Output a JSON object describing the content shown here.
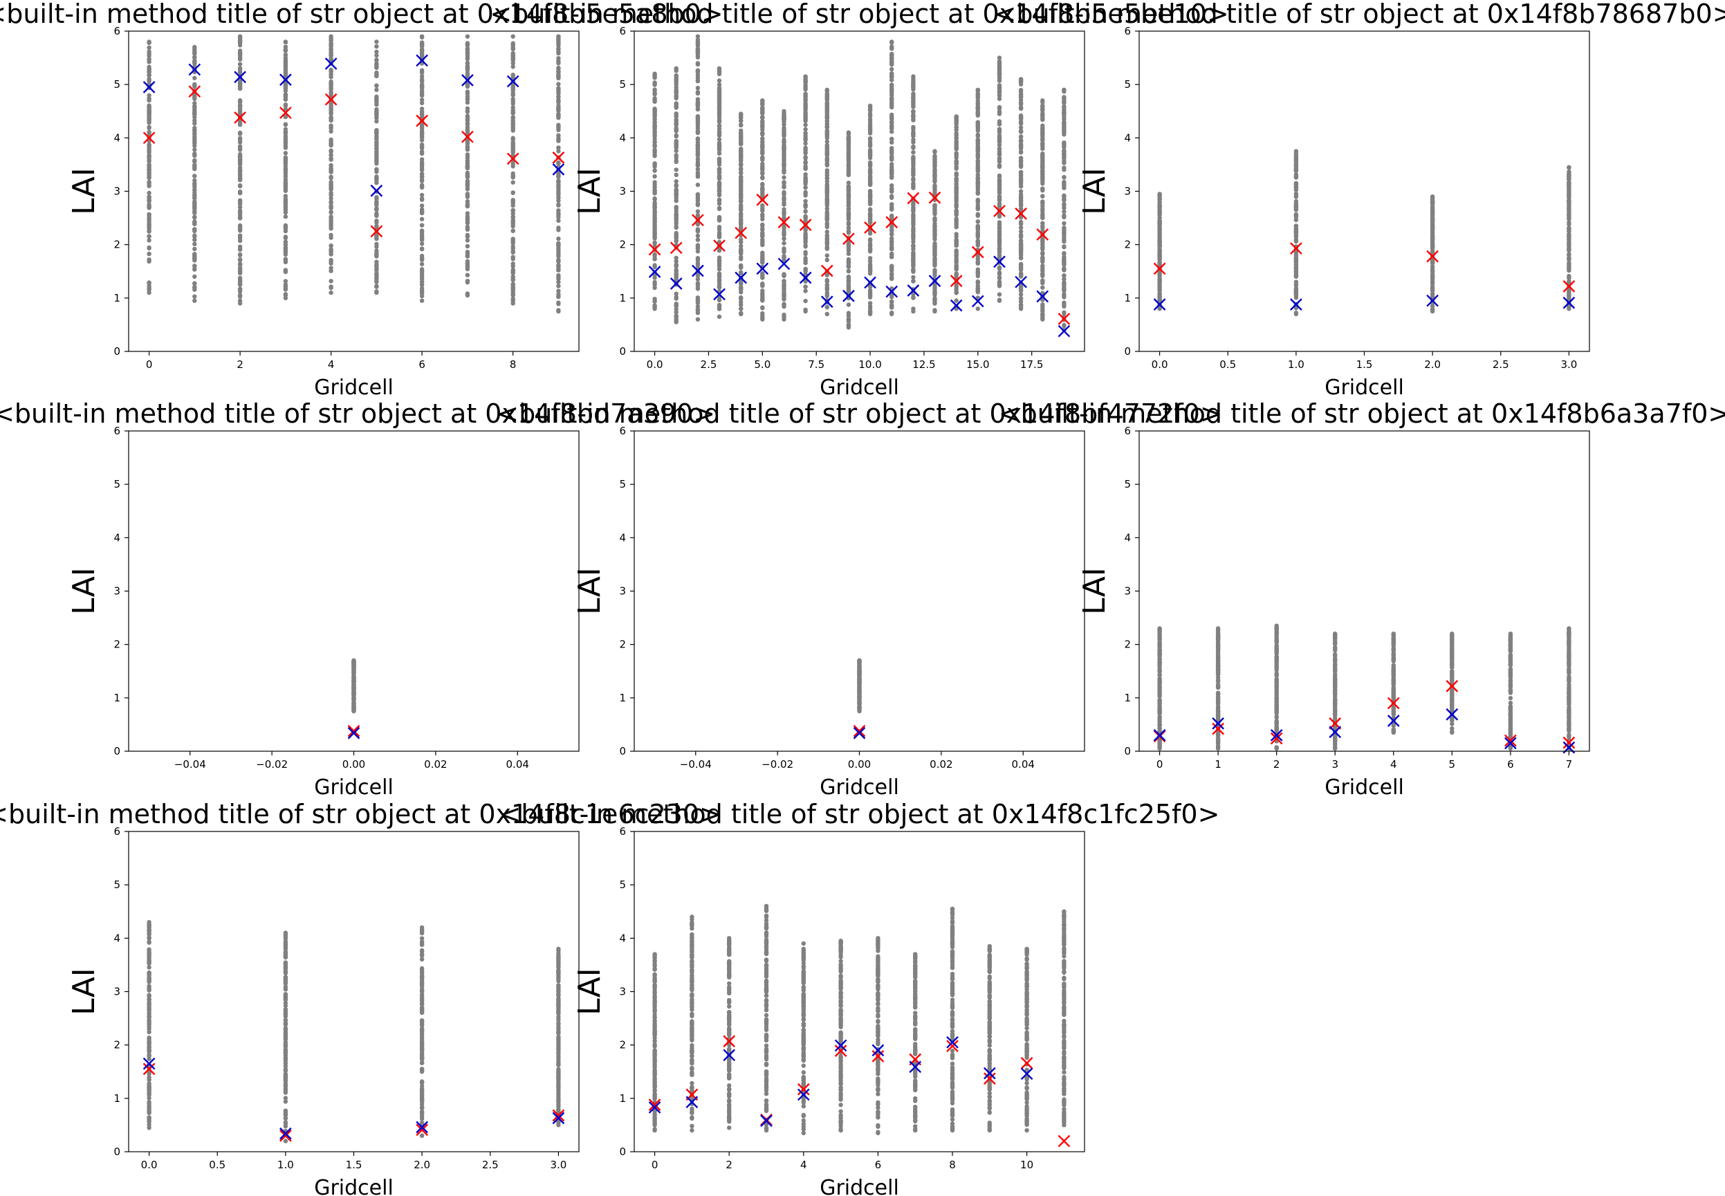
{
  "figure": {
    "background": "#ffffff"
  },
  "colors": {
    "raw": "#808080",
    "marker_red": "#ff0000",
    "marker_blue": "#0000cc"
  },
  "chart_data": [
    {
      "type": "scatter",
      "title": "<built-in method title of str object at 0x14f8b5e5a8b0>",
      "xlabel": "Gridcell",
      "ylabel": "LAI",
      "xlim": [
        -0.45,
        9.45
      ],
      "ylim": [
        0,
        6
      ],
      "xticks": [
        0,
        2,
        4,
        6,
        8
      ],
      "xtick_labels": [
        "0",
        "2",
        "4",
        "6",
        "8"
      ],
      "yticks": [
        0,
        1,
        2,
        3,
        4,
        5,
        6
      ],
      "ytick_labels": [
        "0",
        "1",
        "2",
        "3",
        "4",
        "5",
        "6"
      ],
      "distributions": [
        {
          "x": 0,
          "min": 1.1,
          "max": 5.8
        },
        {
          "x": 1,
          "min": 0.95,
          "max": 5.7
        },
        {
          "x": 2,
          "min": 0.9,
          "max": 5.9
        },
        {
          "x": 3,
          "min": 1.0,
          "max": 5.8
        },
        {
          "x": 4,
          "min": 1.1,
          "max": 5.9
        },
        {
          "x": 5,
          "min": 1.1,
          "max": 5.8
        },
        {
          "x": 6,
          "min": 0.95,
          "max": 5.9
        },
        {
          "x": 7,
          "min": 1.05,
          "max": 5.9
        },
        {
          "x": 8,
          "min": 0.9,
          "max": 5.9
        },
        {
          "x": 9,
          "min": 0.75,
          "max": 5.9
        }
      ],
      "series": [
        {
          "color": "#ff0000",
          "x": [
            0,
            1,
            2,
            3,
            4,
            5,
            6,
            7,
            8,
            9
          ],
          "y": [
            4.0,
            4.87,
            4.38,
            4.47,
            4.72,
            2.25,
            4.32,
            4.02,
            3.61,
            3.63
          ]
        },
        {
          "color": "#0000cc",
          "x": [
            0,
            1,
            2,
            3,
            4,
            5,
            6,
            7,
            8,
            9
          ],
          "y": [
            4.95,
            5.28,
            5.14,
            5.09,
            5.39,
            3.01,
            5.45,
            5.08,
            5.06,
            3.41
          ]
        }
      ]
    },
    {
      "type": "scatter",
      "title": "<built-in method title of str object at 0x14f8b5e5be10>",
      "xlabel": "Gridcell",
      "ylabel": "LAI",
      "xlim": [
        -0.95,
        19.95
      ],
      "ylim": [
        0,
        6
      ],
      "xticks": [
        0,
        2.5,
        5,
        7.5,
        10,
        12.5,
        15,
        17.5
      ],
      "xtick_labels": [
        "0.0",
        "2.5",
        "5.0",
        "7.5",
        "10.0",
        "12.5",
        "15.0",
        "17.5"
      ],
      "yticks": [
        0,
        1,
        2,
        3,
        4,
        5,
        6
      ],
      "ytick_labels": [
        "0",
        "1",
        "2",
        "3",
        "4",
        "5",
        "6"
      ],
      "distributions": [
        {
          "x": 0,
          "min": 0.8,
          "max": 5.2
        },
        {
          "x": 1,
          "min": 0.55,
          "max": 5.3
        },
        {
          "x": 2,
          "min": 0.6,
          "max": 5.9
        },
        {
          "x": 3,
          "min": 0.65,
          "max": 5.3
        },
        {
          "x": 4,
          "min": 0.7,
          "max": 4.45
        },
        {
          "x": 5,
          "min": 0.6,
          "max": 4.7
        },
        {
          "x": 6,
          "min": 0.6,
          "max": 4.5
        },
        {
          "x": 7,
          "min": 0.75,
          "max": 5.15
        },
        {
          "x": 8,
          "min": 0.7,
          "max": 4.9
        },
        {
          "x": 9,
          "min": 0.45,
          "max": 4.1
        },
        {
          "x": 10,
          "min": 0.7,
          "max": 4.6
        },
        {
          "x": 11,
          "min": 0.7,
          "max": 5.8
        },
        {
          "x": 12,
          "min": 0.75,
          "max": 5.15
        },
        {
          "x": 13,
          "min": 0.75,
          "max": 3.75
        },
        {
          "x": 14,
          "min": 0.8,
          "max": 4.4
        },
        {
          "x": 15,
          "min": 0.8,
          "max": 4.9
        },
        {
          "x": 16,
          "min": 0.95,
          "max": 5.5
        },
        {
          "x": 17,
          "min": 0.8,
          "max": 5.1
        },
        {
          "x": 18,
          "min": 0.6,
          "max": 4.7
        },
        {
          "x": 19,
          "min": 0.4,
          "max": 4.9
        }
      ],
      "series": [
        {
          "color": "#ff0000",
          "x": [
            0,
            1,
            2,
            3,
            4,
            5,
            6,
            7,
            8,
            9,
            10,
            11,
            12,
            13,
            14,
            15,
            16,
            17,
            18,
            19
          ],
          "y": [
            1.91,
            1.94,
            2.46,
            1.98,
            2.22,
            2.84,
            2.42,
            2.37,
            1.51,
            2.11,
            2.32,
            2.42,
            2.87,
            2.88,
            1.32,
            1.86,
            2.63,
            2.58,
            2.19,
            0.61
          ]
        },
        {
          "color": "#0000cc",
          "x": [
            0,
            1,
            2,
            3,
            4,
            5,
            6,
            7,
            8,
            9,
            10,
            11,
            12,
            13,
            14,
            15,
            16,
            17,
            18,
            19
          ],
          "y": [
            1.49,
            1.27,
            1.51,
            1.07,
            1.38,
            1.55,
            1.64,
            1.38,
            0.93,
            1.04,
            1.29,
            1.12,
            1.14,
            1.32,
            0.86,
            0.94,
            1.68,
            1.3,
            1.03,
            0.38
          ]
        }
      ]
    },
    {
      "type": "scatter",
      "title": "<built-in method title of str object at 0x14f8b78687b0>",
      "xlabel": "Gridcell",
      "ylabel": "LAI",
      "xlim": [
        -0.15,
        3.15
      ],
      "ylim": [
        0,
        6
      ],
      "xticks": [
        0,
        0.5,
        1,
        1.5,
        2,
        2.5,
        3
      ],
      "xtick_labels": [
        "0.0",
        "0.5",
        "1.0",
        "1.5",
        "2.0",
        "2.5",
        "3.0"
      ],
      "yticks": [
        0,
        1,
        2,
        3,
        4,
        5,
        6
      ],
      "ytick_labels": [
        "0",
        "1",
        "2",
        "3",
        "4",
        "5",
        "6"
      ],
      "distributions": [
        {
          "x": 0,
          "min": 0.8,
          "max": 2.95
        },
        {
          "x": 1,
          "min": 0.7,
          "max": 3.75
        },
        {
          "x": 2,
          "min": 0.75,
          "max": 2.9
        },
        {
          "x": 3,
          "min": 0.8,
          "max": 3.45
        }
      ],
      "series": [
        {
          "color": "#ff0000",
          "x": [
            0,
            1,
            2,
            3
          ],
          "y": [
            1.55,
            1.93,
            1.78,
            1.22
          ]
        },
        {
          "color": "#0000cc",
          "x": [
            0,
            1,
            2,
            3
          ],
          "y": [
            0.88,
            0.88,
            0.95,
            0.91
          ]
        }
      ]
    },
    {
      "type": "scatter",
      "title": "<built-in method title of str object at 0x14f8bd7a390>",
      "xlabel": "Gridcell",
      "ylabel": "LAI",
      "xlim": [
        -0.055,
        0.055
      ],
      "ylim": [
        0,
        6
      ],
      "xticks": [
        -0.04,
        -0.02,
        0,
        0.02,
        0.04
      ],
      "xtick_labels": [
        "−0.04",
        "−0.02",
        "0.00",
        "0.02",
        "0.04"
      ],
      "yticks": [
        0,
        1,
        2,
        3,
        4,
        5,
        6
      ],
      "ytick_labels": [
        "0",
        "1",
        "2",
        "3",
        "4",
        "5",
        "6"
      ],
      "distributions": [
        {
          "x": 0,
          "min": 0.75,
          "max": 1.7
        }
      ],
      "series": [
        {
          "color": "#ff0000",
          "x": [
            0
          ],
          "y": [
            0.38
          ]
        },
        {
          "color": "#0000cc",
          "x": [
            0
          ],
          "y": [
            0.34
          ]
        }
      ]
    },
    {
      "type": "scatter",
      "title": "<built-in method title of str object at 0x14f8bf4772f0>",
      "xlabel": "Gridcell",
      "ylabel": "LAI",
      "xlim": [
        -0.055,
        0.055
      ],
      "ylim": [
        0,
        6
      ],
      "xticks": [
        -0.04,
        -0.02,
        0,
        0.02,
        0.04
      ],
      "xtick_labels": [
        "−0.04",
        "−0.02",
        "0.00",
        "0.02",
        "0.04"
      ],
      "yticks": [
        0,
        1,
        2,
        3,
        4,
        5,
        6
      ],
      "ytick_labels": [
        "0",
        "1",
        "2",
        "3",
        "4",
        "5",
        "6"
      ],
      "distributions": [
        {
          "x": 0,
          "min": 0.75,
          "max": 1.7
        }
      ],
      "series": [
        {
          "color": "#ff0000",
          "x": [
            0
          ],
          "y": [
            0.38
          ]
        },
        {
          "color": "#0000cc",
          "x": [
            0
          ],
          "y": [
            0.34
          ]
        }
      ]
    },
    {
      "type": "scatter",
      "title": "<built-in method title of str object at 0x14f8b6a3a7f0>",
      "xlabel": "Gridcell",
      "ylabel": "LAI",
      "xlim": [
        -0.35,
        7.35
      ],
      "ylim": [
        0,
        6
      ],
      "xticks": [
        0,
        1,
        2,
        3,
        4,
        5,
        6,
        7
      ],
      "xtick_labels": [
        "0",
        "1",
        "2",
        "3",
        "4",
        "5",
        "6",
        "7"
      ],
      "yticks": [
        0,
        1,
        2,
        3,
        4,
        5,
        6
      ],
      "ytick_labels": [
        "0",
        "1",
        "2",
        "3",
        "4",
        "5",
        "6"
      ],
      "distributions": [
        {
          "x": 0,
          "min": 0.05,
          "max": 2.3
        },
        {
          "x": 1,
          "min": 0.05,
          "max": 2.3
        },
        {
          "x": 2,
          "min": 0.05,
          "max": 2.35
        },
        {
          "x": 3,
          "min": 0.05,
          "max": 2.2
        },
        {
          "x": 4,
          "min": 0.35,
          "max": 2.2
        },
        {
          "x": 5,
          "min": 0.35,
          "max": 2.2
        },
        {
          "x": 6,
          "min": 0.05,
          "max": 2.2
        },
        {
          "x": 7,
          "min": 0.05,
          "max": 2.3
        }
      ],
      "series": [
        {
          "color": "#ff0000",
          "x": [
            0,
            1,
            2,
            3,
            4,
            5,
            6,
            7
          ],
          "y": [
            0.28,
            0.42,
            0.24,
            0.52,
            0.9,
            1.22,
            0.2,
            0.16
          ]
        },
        {
          "color": "#0000cc",
          "x": [
            0,
            1,
            2,
            3,
            4,
            5,
            6,
            7
          ],
          "y": [
            0.3,
            0.52,
            0.3,
            0.36,
            0.57,
            0.69,
            0.15,
            0.07
          ]
        }
      ]
    },
    {
      "type": "scatter",
      "title": "<built-in method title of str object at 0x14f8c1e6c230>",
      "xlabel": "Gridcell",
      "ylabel": "LAI",
      "xlim": [
        -0.15,
        3.15
      ],
      "ylim": [
        0,
        6
      ],
      "xticks": [
        0,
        0.5,
        1,
        1.5,
        2,
        2.5,
        3
      ],
      "xtick_labels": [
        "0.0",
        "0.5",
        "1.0",
        "1.5",
        "2.0",
        "2.5",
        "3.0"
      ],
      "yticks": [
        0,
        1,
        2,
        3,
        4,
        5,
        6
      ],
      "ytick_labels": [
        "0",
        "1",
        "2",
        "3",
        "4",
        "5",
        "6"
      ],
      "distributions": [
        {
          "x": 0,
          "min": 0.45,
          "max": 4.3
        },
        {
          "x": 1,
          "min": 0.2,
          "max": 4.1
        },
        {
          "x": 2,
          "min": 0.3,
          "max": 4.2
        },
        {
          "x": 3,
          "min": 0.5,
          "max": 3.8
        }
      ],
      "series": [
        {
          "color": "#ff0000",
          "x": [
            0,
            1,
            2,
            3
          ],
          "y": [
            1.55,
            0.3,
            0.41,
            0.68
          ]
        },
        {
          "color": "#0000cc",
          "x": [
            0,
            1,
            2,
            3
          ],
          "y": [
            1.65,
            0.34,
            0.46,
            0.63
          ]
        }
      ]
    },
    {
      "type": "scatter",
      "title": "<built-in method title of str object at 0x14f8c1fc25f0>",
      "xlabel": "Gridcell",
      "ylabel": "LAI",
      "xlim": [
        -0.55,
        11.55
      ],
      "ylim": [
        0,
        6
      ],
      "xticks": [
        0,
        2,
        4,
        6,
        8,
        10
      ],
      "xtick_labels": [
        "0",
        "2",
        "4",
        "6",
        "8",
        "10"
      ],
      "yticks": [
        0,
        1,
        2,
        3,
        4,
        5,
        6
      ],
      "ytick_labels": [
        "0",
        "1",
        "2",
        "3",
        "4",
        "5",
        "6"
      ],
      "distributions": [
        {
          "x": 0,
          "min": 0.4,
          "max": 3.7
        },
        {
          "x": 1,
          "min": 0.4,
          "max": 4.4
        },
        {
          "x": 2,
          "min": 0.45,
          "max": 4.0
        },
        {
          "x": 3,
          "min": 0.4,
          "max": 4.6
        },
        {
          "x": 4,
          "min": 0.35,
          "max": 3.9
        },
        {
          "x": 5,
          "min": 0.4,
          "max": 3.95
        },
        {
          "x": 6,
          "min": 0.35,
          "max": 4.0
        },
        {
          "x": 7,
          "min": 0.4,
          "max": 3.7
        },
        {
          "x": 8,
          "min": 0.4,
          "max": 4.55
        },
        {
          "x": 9,
          "min": 0.4,
          "max": 3.85
        },
        {
          "x": 10,
          "min": 0.4,
          "max": 3.8
        },
        {
          "x": 11,
          "min": 0.5,
          "max": 4.5
        }
      ],
      "series": [
        {
          "color": "#ff0000",
          "x": [
            0,
            1,
            2,
            3,
            4,
            5,
            6,
            7,
            8,
            9,
            10,
            11
          ],
          "y": [
            0.88,
            1.07,
            2.07,
            0.6,
            1.17,
            1.89,
            1.79,
            1.73,
            1.98,
            1.37,
            1.66,
            0.2
          ]
        },
        {
          "color": "#0000cc",
          "x": [
            0,
            1,
            2,
            3,
            4,
            5,
            6,
            7,
            8,
            9,
            10
          ],
          "y": [
            0.83,
            0.93,
            1.81,
            0.58,
            1.07,
            1.99,
            1.9,
            1.59,
            2.05,
            1.47,
            1.46
          ]
        }
      ]
    }
  ]
}
